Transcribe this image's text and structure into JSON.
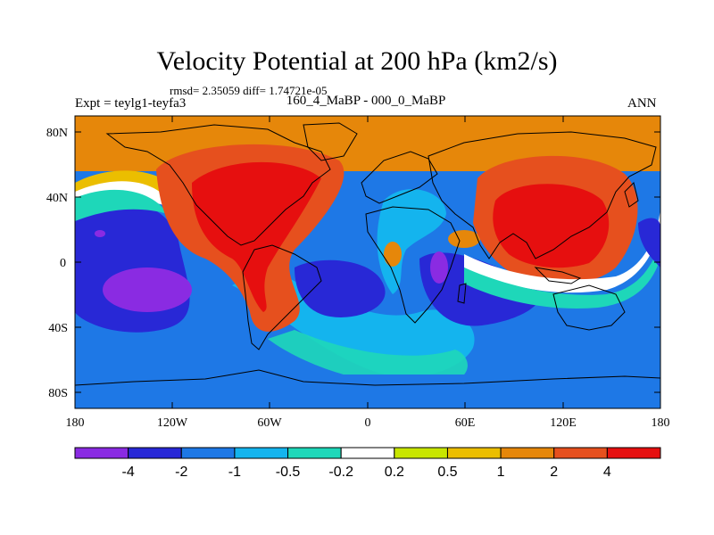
{
  "title": "Velocity Potential at 200 hPa (km2/s)",
  "rmsd_line": "rmsd= 2.35059 diff= 1.74721e-05",
  "experiment_label": "Expt = teylg1-teyfa3",
  "case_label": "160_4_MaBP - 000_0_MaBP",
  "season_label": "ANN",
  "y_ticks": [
    "80N",
    "40N",
    "0",
    "40S",
    "80S"
  ],
  "x_ticks": [
    "180",
    "120W",
    "60W",
    "0",
    "60E",
    "120E",
    "180"
  ],
  "colorbar": {
    "labels": [
      "-4",
      "-2",
      "-1",
      "-0.5",
      "-0.2",
      "0.2",
      "0.5",
      "1",
      "2",
      "4"
    ],
    "colors": [
      "#8a2be2",
      "#2828d6",
      "#1e78e6",
      "#14b4ee",
      "#1ed7b9",
      "#ffffff",
      "#c8e600",
      "#ebbe00",
      "#e6870a",
      "#e6501e",
      "#e60f0f"
    ]
  }
}
